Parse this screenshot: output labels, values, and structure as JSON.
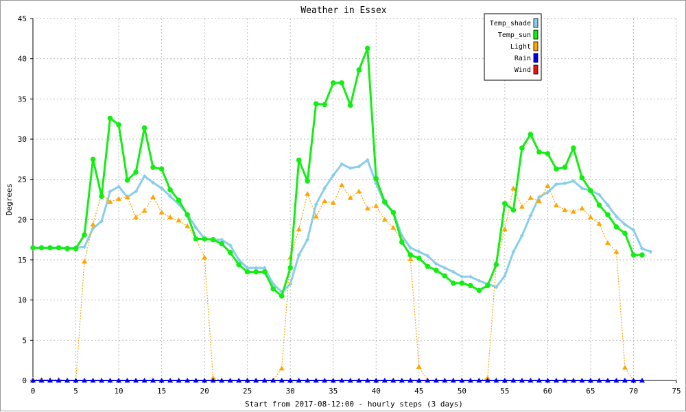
{
  "chart_data": {
    "type": "line",
    "title": "Weather in Essex",
    "xlabel": "Start from 2017-08-12:00 - hourly steps (3 days)",
    "ylabel": "Degrees",
    "xlim": [
      0,
      75
    ],
    "ylim": [
      0,
      45
    ],
    "xticks": [
      "0",
      "5",
      "10",
      "15",
      "20",
      "25",
      "30",
      "35",
      "40",
      "45",
      "50",
      "55",
      "60",
      "65",
      "70",
      "75"
    ],
    "yticks": [
      "0",
      "5",
      "10",
      "15",
      "20",
      "25",
      "30",
      "35",
      "40",
      "45"
    ],
    "grid": true,
    "legend_position": "top-right",
    "series": [
      {
        "name": "Temp_shade",
        "color": "#87CEEB",
        "marker": "diamond",
        "values": [
          16.5,
          16.5,
          16.5,
          16.5,
          16.5,
          16.5,
          16.6,
          18.9,
          19.8,
          23.5,
          24.1,
          22.8,
          23.5,
          25.4,
          24.6,
          23.9,
          22.9,
          21.9,
          20.7,
          19.0,
          17.6,
          17.5,
          17.5,
          16.8,
          15.0,
          14.0,
          14.0,
          14.0,
          12.0,
          11.0,
          12.0,
          15.6,
          17.5,
          21.9,
          23.9,
          25.5,
          26.9,
          26.4,
          26.6,
          27.4,
          24.5,
          22.0,
          20.9,
          18.0,
          16.5,
          16.0,
          15.5,
          14.5,
          14.0,
          13.5,
          12.9,
          12.9,
          12.4,
          12.0,
          11.6,
          13.0,
          16.0,
          18.0,
          20.5,
          22.8,
          23.4,
          24.4,
          24.5,
          24.8,
          23.9,
          23.6,
          23.1,
          21.8,
          20.4,
          19.4,
          18.7,
          16.4,
          16.0
        ]
      },
      {
        "name": "Temp_sun",
        "color": "#11EE11",
        "marker": "circle",
        "values": [
          16.5,
          16.5,
          16.5,
          16.5,
          16.4,
          16.4,
          18.1,
          27.5,
          22.9,
          32.6,
          31.8,
          24.9,
          25.9,
          31.4,
          26.5,
          26.3,
          23.7,
          22.4,
          20.6,
          17.6,
          17.6,
          17.5,
          17.0,
          15.9,
          14.4,
          13.5,
          13.5,
          13.5,
          11.4,
          10.5,
          14.0,
          27.4,
          24.8,
          34.4,
          34.3,
          37.0,
          37.0,
          34.2,
          38.6,
          41.3,
          25.1,
          22.2,
          20.9,
          17.2,
          15.6,
          15.2,
          14.2,
          13.7,
          13.0,
          12.1,
          12.1,
          11.8,
          11.2,
          11.8,
          14.4,
          22.0,
          21.2,
          28.9,
          30.6,
          28.4,
          28.2,
          26.3,
          26.5,
          28.9,
          25.2,
          23.6,
          21.8,
          20.6,
          19.1,
          18.3,
          15.6,
          15.6
        ]
      },
      {
        "name": "Light",
        "color": "#FFA500",
        "marker": "triangle",
        "values": [
          0.1,
          0.1,
          0.1,
          0.1,
          0,
          0,
          14.8,
          19.4,
          23.2,
          22.2,
          22.6,
          22.8,
          20.3,
          21.1,
          22.8,
          20.9,
          20.3,
          19.9,
          19.2,
          17.6,
          15.3,
          0.3,
          0,
          0,
          0,
          0,
          0,
          0,
          0,
          1.5,
          15.3,
          18.8,
          23.2,
          20.4,
          22.3,
          22.1,
          24.3,
          22.7,
          23.5,
          21.4,
          21.7,
          20.0,
          19.0,
          17.4,
          15.1,
          1.7,
          0,
          0,
          0,
          0,
          0,
          0,
          0,
          0.3,
          14.6,
          18.8,
          23.9,
          21.6,
          22.7,
          22.3,
          24.2,
          21.8,
          21.2,
          21.0,
          21.4,
          20.3,
          19.5,
          17.1,
          16.0,
          1.6,
          0
        ]
      },
      {
        "name": "Rain",
        "color": "#0000EE",
        "marker": "triangle",
        "values": [
          0,
          0,
          0,
          0,
          0,
          0,
          0,
          0,
          0,
          0,
          0,
          0,
          0,
          0,
          0,
          0,
          0,
          0,
          0,
          0,
          0,
          0,
          0,
          0,
          0,
          0,
          0,
          0,
          0,
          0,
          0,
          0,
          0,
          0,
          0,
          0,
          0,
          0,
          0,
          0,
          0,
          0,
          0,
          0,
          0,
          0,
          0,
          0,
          0,
          0,
          0,
          0,
          0,
          0,
          0,
          0,
          0,
          0,
          0,
          0,
          0,
          0,
          0,
          0,
          0,
          0,
          0,
          0,
          0,
          0,
          0,
          0
        ]
      },
      {
        "name": "Wind",
        "color": "#EE1111",
        "marker": "none",
        "values": []
      }
    ]
  }
}
